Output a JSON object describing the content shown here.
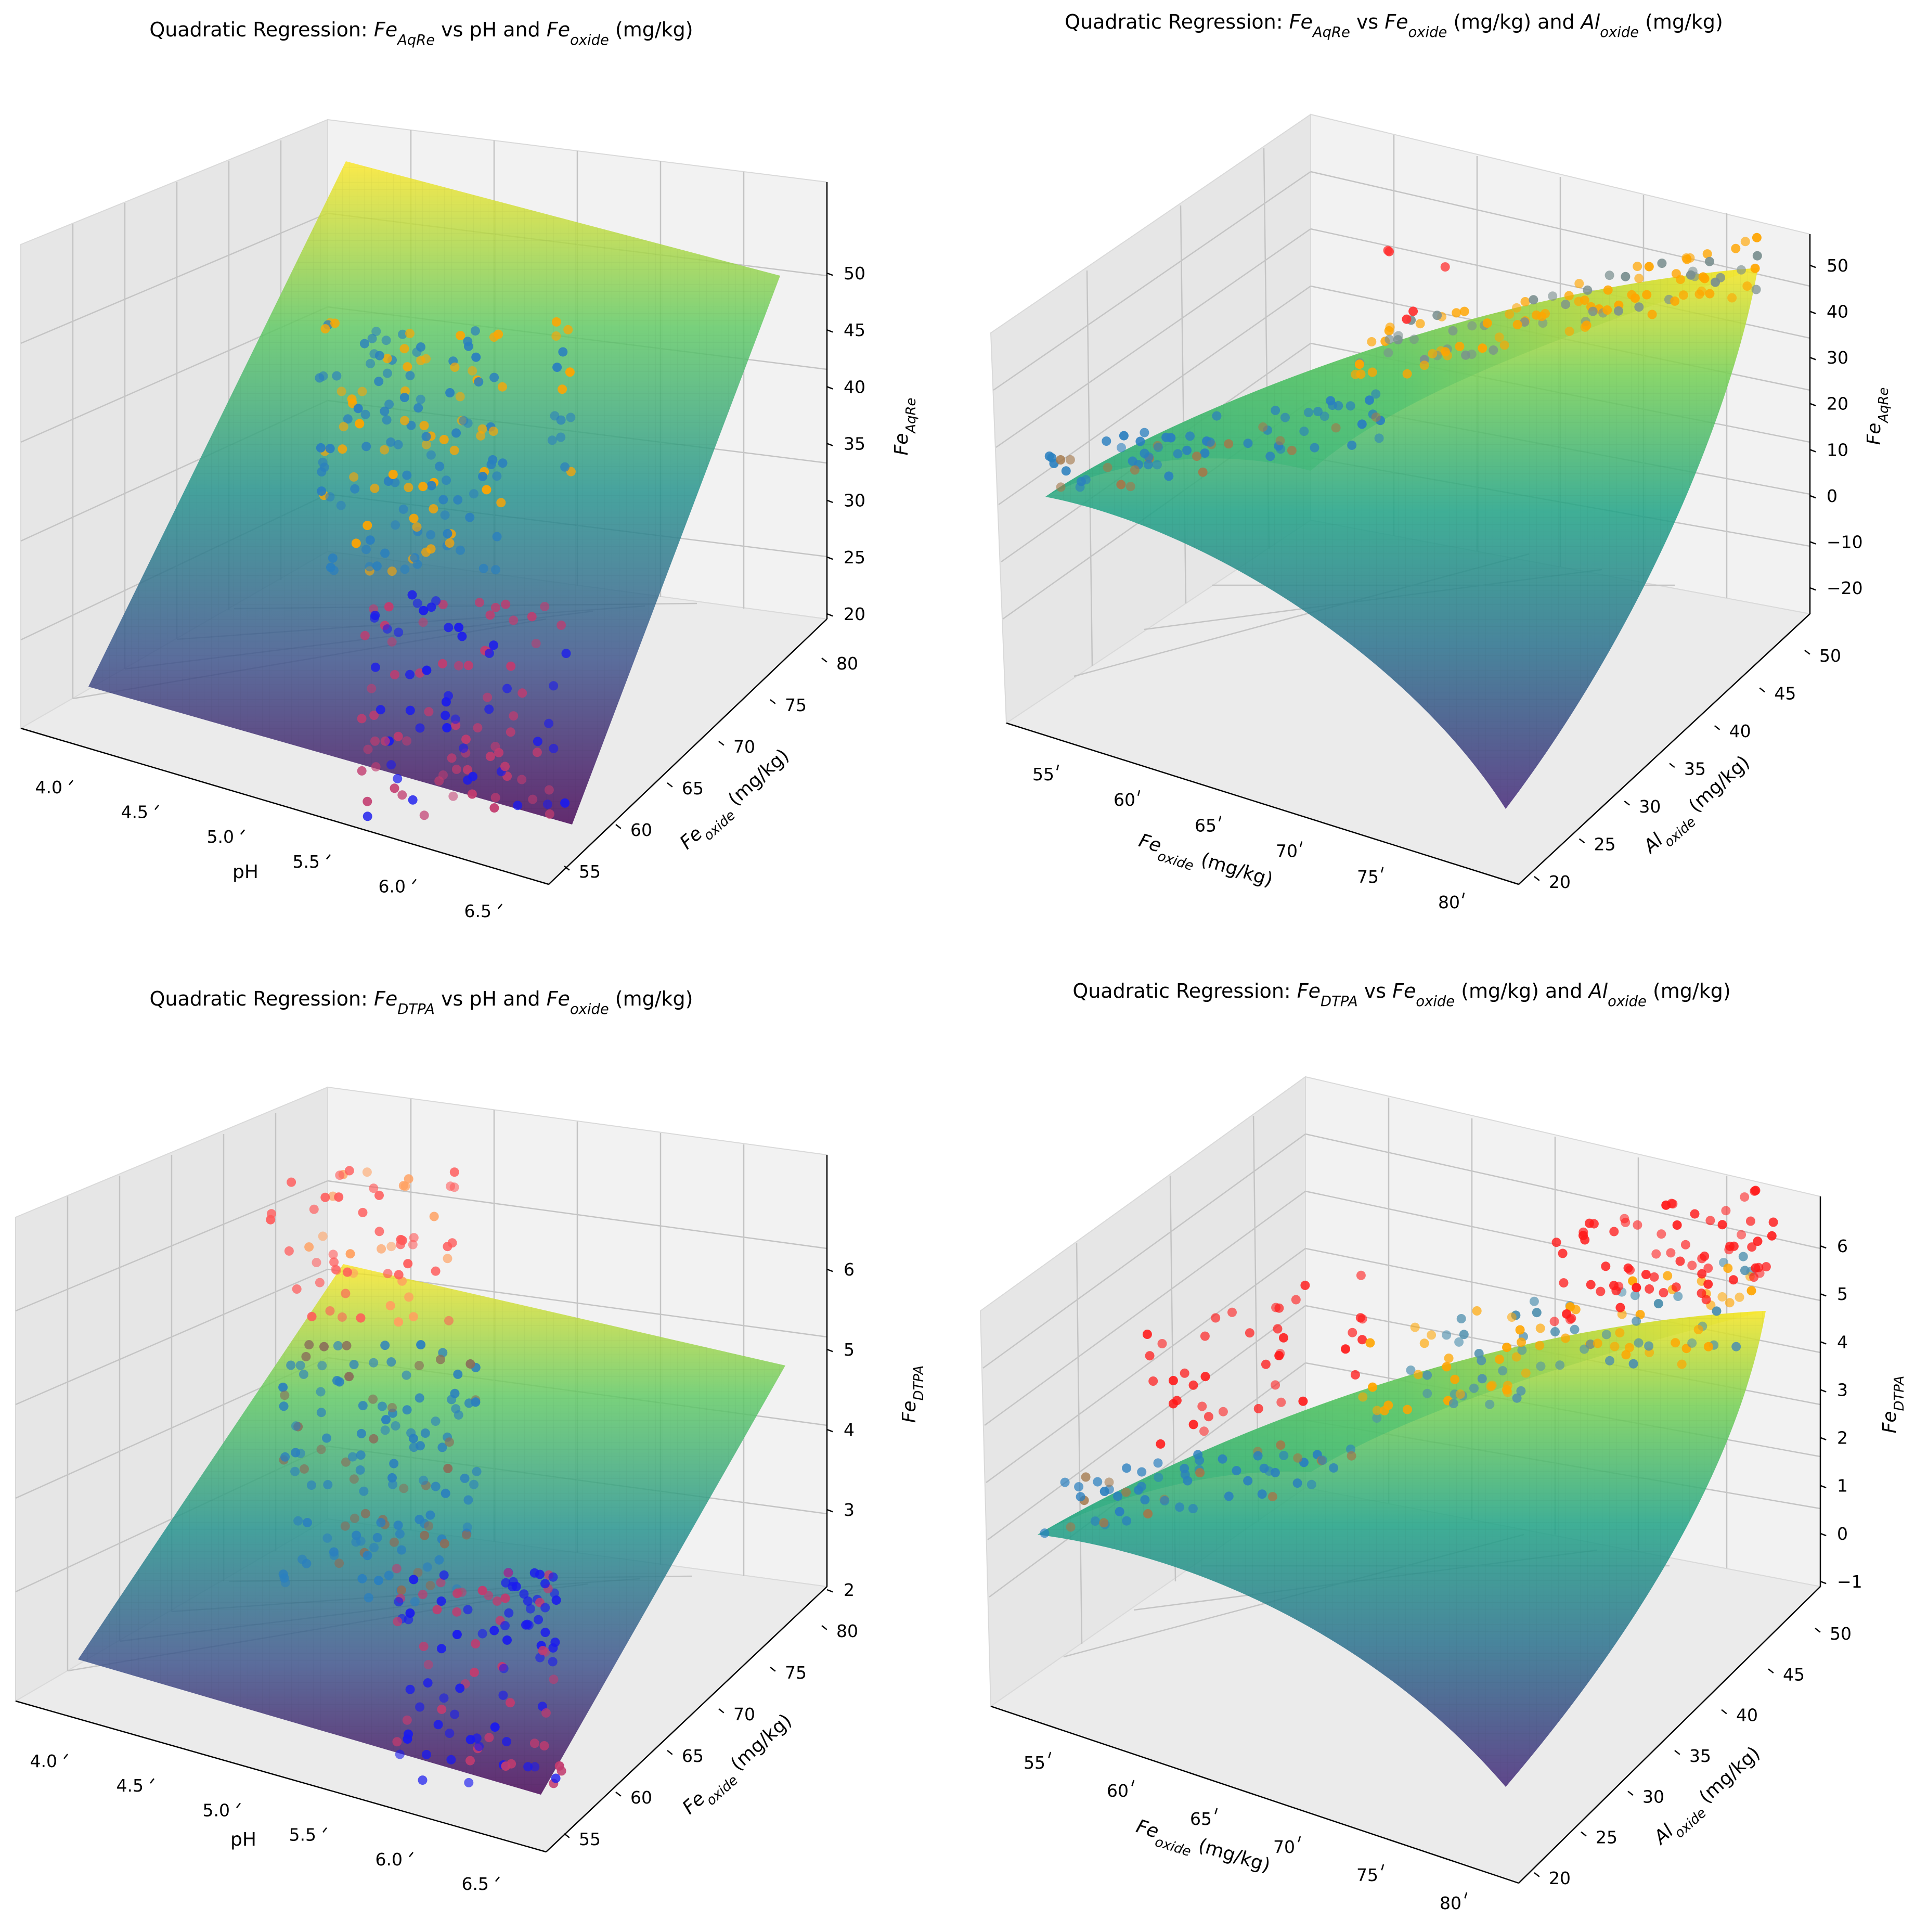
{
  "chart_data": [
    {
      "type": "surface3d",
      "title": "Quadratic Regression: Fe_AqRe vs pH and Fe_oxide (mg/kg)",
      "title_parts": [
        {
          "t": "Quadratic Regression: "
        },
        {
          "t": "Fe",
          "i": true
        },
        {
          "t": "AqRe",
          "sub": true
        },
        {
          "t": " vs pH and "
        },
        {
          "t": "Fe",
          "i": true
        },
        {
          "t": "oxide",
          "sub": true
        },
        {
          "t": " (mg/kg)"
        }
      ],
      "xlabel_parts": [
        {
          "t": "pH"
        }
      ],
      "ylabel_parts": [
        {
          "t": "Fe",
          "i": true
        },
        {
          "t": "oxide",
          "sub": true
        },
        {
          "t": " (mg/kg)"
        }
      ],
      "zlabel_parts": [
        {
          "t": "Fe",
          "i": true
        },
        {
          "t": "AqRe",
          "sub": true
        }
      ],
      "xticks": [
        "4.0",
        "4.5",
        "5.0",
        "5.5",
        "6.0",
        "6.5"
      ],
      "yticks": [
        "55",
        "60",
        "65",
        "70",
        "75",
        "80"
      ],
      "zticks": [
        "20",
        "25",
        "30",
        "35",
        "40",
        "45",
        "50"
      ],
      "xlim": [
        3.9,
        6.6
      ],
      "ylim": [
        52,
        83
      ],
      "zlim": [
        20,
        52
      ],
      "surface_z_range": [
        17,
        50
      ],
      "colormap": "viridis",
      "points_colors": [
        "#0000ff",
        "#ff0000",
        "#ffa500"
      ]
    },
    {
      "type": "surface3d",
      "title": "Quadratic Regression: Fe_AqRe vs Fe_oxide (mg/kg) and Al_oxide (mg/kg)",
      "title_parts": [
        {
          "t": "Quadratic Regression: "
        },
        {
          "t": "Fe",
          "i": true
        },
        {
          "t": "AqRe",
          "sub": true
        },
        {
          "t": " vs "
        },
        {
          "t": "Fe",
          "i": true
        },
        {
          "t": "oxide",
          "sub": true
        },
        {
          "t": " (mg/kg) and "
        },
        {
          "t": "Al",
          "i": true
        },
        {
          "t": "oxide",
          "sub": true
        },
        {
          "t": " (mg/kg)"
        }
      ],
      "xlabel_parts": [
        {
          "t": "Fe",
          "i": true
        },
        {
          "t": "oxide",
          "sub": true
        },
        {
          "t": " (mg/kg)"
        }
      ],
      "ylabel_parts": [
        {
          "t": "Al",
          "i": true
        },
        {
          "t": "oxide",
          "sub": true
        },
        {
          "t": " (mg/kg)"
        }
      ],
      "zlabel_parts": [
        {
          "t": "Fe",
          "i": true
        },
        {
          "t": "AqRe",
          "sub": true
        }
      ],
      "xticks": [
        "55",
        "60",
        "65",
        "70",
        "75",
        "80"
      ],
      "yticks": [
        "20",
        "25",
        "30",
        "35",
        "40",
        "45",
        "50"
      ],
      "zticks": [
        "−20",
        "−10",
        "0",
        "10",
        "20",
        "30",
        "40",
        "50"
      ],
      "xlim": [
        52,
        83
      ],
      "ylim": [
        18,
        53
      ],
      "zlim": [
        -23,
        54
      ],
      "colormap": "viridis",
      "points_colors": [
        "#0000ff",
        "#ff0000",
        "#ffa500"
      ]
    },
    {
      "type": "surface3d",
      "title": "Quadratic Regression: Fe_DTPA vs pH and Fe_oxide (mg/kg)",
      "title_parts": [
        {
          "t": "Quadratic Regression: "
        },
        {
          "t": "Fe",
          "i": true
        },
        {
          "t": "DTPA",
          "sub": true
        },
        {
          "t": " vs pH and "
        },
        {
          "t": "Fe",
          "i": true
        },
        {
          "t": "oxide",
          "sub": true
        },
        {
          "t": " (mg/kg)"
        }
      ],
      "xlabel_parts": [
        {
          "t": "pH"
        }
      ],
      "ylabel_parts": [
        {
          "t": "Fe",
          "i": true
        },
        {
          "t": "oxide",
          "sub": true
        },
        {
          "t": " (mg/kg)"
        }
      ],
      "zlabel_parts": [
        {
          "t": "Fe",
          "i": true
        },
        {
          "t": "DTPA",
          "sub": true
        }
      ],
      "xticks": [
        "4.0",
        "4.5",
        "5.0",
        "5.5",
        "6.0",
        "6.5"
      ],
      "yticks": [
        "55",
        "60",
        "65",
        "70",
        "75",
        "80"
      ],
      "zticks": [
        "2",
        "3",
        "4",
        "5",
        "6"
      ],
      "xlim": [
        3.9,
        6.6
      ],
      "ylim": [
        52,
        83
      ],
      "zlim": [
        2,
        6.5
      ],
      "colormap": "viridis",
      "points_colors": [
        "#0000ff",
        "#ff0000",
        "#ffa500"
      ]
    },
    {
      "type": "surface3d",
      "title": "Quadratic Regression: Fe_DTPA vs Fe_oxide (mg/kg) and Al_oxide (mg/kg)",
      "title_parts": [
        {
          "t": "Quadratic Regression: "
        },
        {
          "t": "Fe",
          "i": true
        },
        {
          "t": "DTPA",
          "sub": true
        },
        {
          "t": " vs "
        },
        {
          "t": "Fe",
          "i": true
        },
        {
          "t": "oxide",
          "sub": true
        },
        {
          "t": " (mg/kg) and "
        },
        {
          "t": "Al",
          "i": true
        },
        {
          "t": "oxide",
          "sub": true
        },
        {
          "t": " (mg/kg)"
        }
      ],
      "xlabel_parts": [
        {
          "t": "Fe",
          "i": true
        },
        {
          "t": "oxide",
          "sub": true
        },
        {
          "t": " (mg/kg)"
        }
      ],
      "ylabel_parts": [
        {
          "t": "Al",
          "i": true
        },
        {
          "t": "oxide",
          "sub": true
        },
        {
          "t": " (mg/kg)"
        }
      ],
      "zlabel_parts": [
        {
          "t": "Fe",
          "i": true
        },
        {
          "t": "DTPA",
          "sub": true
        }
      ],
      "xticks": [
        "55",
        "60",
        "65",
        "70",
        "75",
        "80"
      ],
      "yticks": [
        "20",
        "25",
        "30",
        "35",
        "40",
        "45",
        "50"
      ],
      "zticks": [
        "−1",
        "0",
        "1",
        "2",
        "3",
        "4",
        "5",
        "6"
      ],
      "xlim": [
        52,
        83
      ],
      "ylim": [
        18,
        53
      ],
      "zlim": [
        -1.3,
        6.6
      ],
      "colormap": "viridis",
      "points_colors": [
        "#0000ff",
        "#ff0000",
        "#ffa500"
      ]
    }
  ]
}
